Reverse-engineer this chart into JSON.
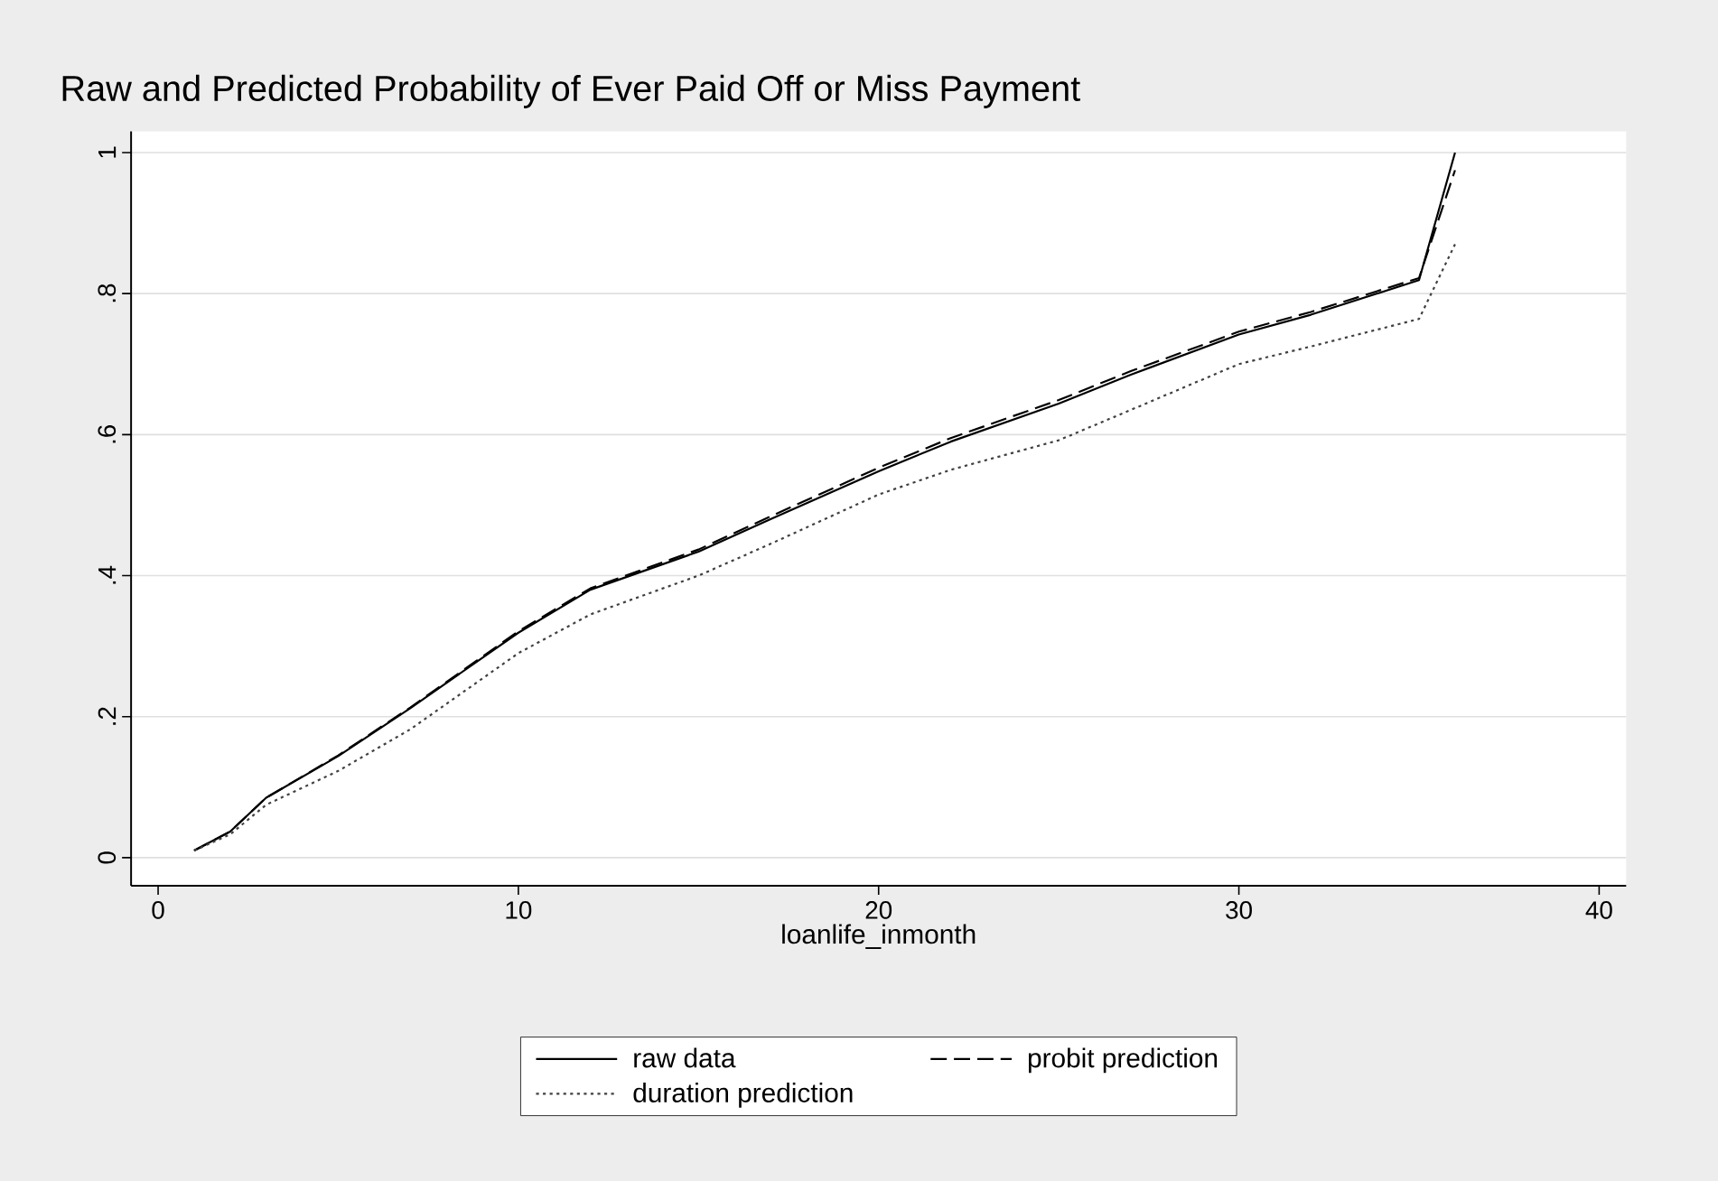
{
  "chart_data": {
    "type": "line",
    "title": "Raw and Predicted Probability of Ever Paid Off or Miss Payment",
    "xlabel": "loanlife_inmonth",
    "x": [
      1,
      2,
      3,
      5,
      7,
      10,
      12,
      15,
      17,
      20,
      22,
      25,
      27,
      30,
      32,
      35,
      36
    ],
    "series": [
      {
        "name": "raw data",
        "color": "#000000",
        "line_style": "solid",
        "values": [
          0.01,
          0.037,
          0.085,
          0.144,
          0.212,
          0.319,
          0.38,
          0.434,
          0.48,
          0.548,
          0.59,
          0.644,
          0.685,
          0.742,
          0.77,
          0.819,
          1.0
        ]
      },
      {
        "name": "probit prediction",
        "color": "#000000",
        "line_style": "dashed",
        "values": [
          0.01,
          0.037,
          0.085,
          0.145,
          0.213,
          0.321,
          0.382,
          0.437,
          0.484,
          0.553,
          0.595,
          0.649,
          0.69,
          0.746,
          0.774,
          0.822,
          0.975
        ]
      },
      {
        "name": "duration prediction",
        "color": "#404040",
        "line_style": "dotted",
        "values": [
          0.01,
          0.033,
          0.075,
          0.123,
          0.182,
          0.29,
          0.345,
          0.4,
          0.445,
          0.515,
          0.55,
          0.592,
          0.635,
          0.7,
          0.725,
          0.764,
          0.87
        ]
      }
    ],
    "xlim": [
      -0.75,
      40.75
    ],
    "ylim": [
      -0.04,
      1.03
    ],
    "xticks": [
      0,
      10,
      20,
      30,
      40
    ],
    "yticks": [
      0,
      {
        "value": 0.2,
        "label": ".2"
      },
      {
        "value": 0.4,
        "label": ".4"
      },
      {
        "value": 0.6,
        "label": ".6"
      },
      {
        "value": 0.8,
        "label": ".8"
      },
      1
    ],
    "grid": "y",
    "legend": "bottom"
  }
}
